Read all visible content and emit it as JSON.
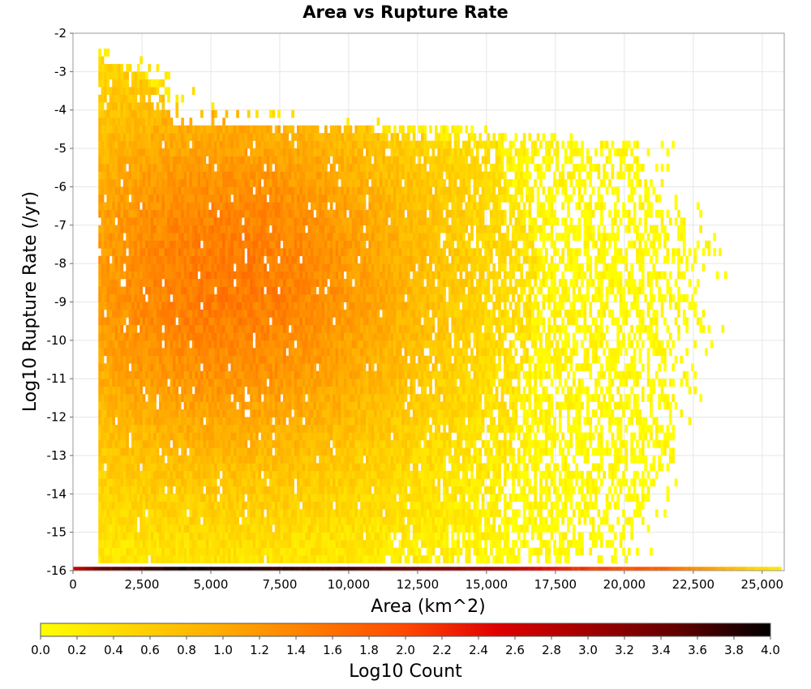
{
  "chart_data": {
    "type": "heatmap",
    "title": "Area vs Rupture Rate",
    "xlabel": "Area (km^2)",
    "ylabel": "Log10 Rupture Rate (/yr)",
    "xlim": [
      0,
      25800
    ],
    "ylim": [
      -16,
      -2
    ],
    "x_ticks": [
      "0",
      "2,500",
      "5,000",
      "7,500",
      "10,000",
      "12,500",
      "15,000",
      "17,500",
      "20,000",
      "22,500",
      "25,000"
    ],
    "x_tick_values": [
      0,
      2500,
      5000,
      7500,
      10000,
      12500,
      15000,
      17500,
      20000,
      22500,
      25000
    ],
    "y_ticks": [
      "-2",
      "-3",
      "-4",
      "-5",
      "-6",
      "-7",
      "-8",
      "-9",
      "-10",
      "-11",
      "-12",
      "-13",
      "-14",
      "-15",
      "-16"
    ],
    "y_tick_values": [
      -2,
      -3,
      -4,
      -5,
      -6,
      -7,
      -8,
      -9,
      -10,
      -11,
      -12,
      -13,
      -14,
      -15,
      -16
    ],
    "grid": true,
    "colorbar": {
      "label": "Log10 Count",
      "range": [
        0,
        4
      ],
      "ticks": [
        "0.0",
        "0.2",
        "0.4",
        "0.6",
        "0.8",
        "1.0",
        "1.2",
        "1.4",
        "1.6",
        "1.8",
        "2.0",
        "2.2",
        "2.4",
        "2.6",
        "2.8",
        "3.0",
        "3.2",
        "3.4",
        "3.6",
        "3.8",
        "4.0"
      ],
      "tick_values": [
        0,
        0.2,
        0.4,
        0.6,
        0.8,
        1.0,
        1.2,
        1.4,
        1.6,
        1.8,
        2.0,
        2.2,
        2.4,
        2.6,
        2.8,
        3.0,
        3.2,
        3.4,
        3.6,
        3.8,
        4.0
      ],
      "colors": [
        "#ffff00",
        "#ffd500",
        "#ffaa00",
        "#ff7a00",
        "#ff4800",
        "#e00000",
        "#a00000",
        "#600000",
        "#000000"
      ],
      "placement": "bottom"
    },
    "density_model": {
      "x_bin_width": 100,
      "y_bin_height": 0.2,
      "min_area": 920,
      "zero_rate_row": {
        "y": -16,
        "x_range": [
          0,
          25700
        ],
        "log10_count_profile": [
          [
            0,
            2.6
          ],
          [
            1000,
            3.4
          ],
          [
            4000,
            3.9
          ],
          [
            10000,
            3.6
          ],
          [
            15000,
            3.0
          ],
          [
            18000,
            2.2
          ],
          [
            21500,
            1.7
          ],
          [
            23500,
            0.9
          ],
          [
            25700,
            0.2
          ]
        ]
      },
      "max_area_by_rate": [
        [
          -2.7,
          1000
        ],
        [
          -3.0,
          2500
        ],
        [
          -4.0,
          5000
        ],
        [
          -5.0,
          20500
        ],
        [
          -6.0,
          20800
        ],
        [
          -7.0,
          22000
        ],
        [
          -8.0,
          22500
        ],
        [
          -9.0,
          22300
        ],
        [
          -11.0,
          21800
        ],
        [
          -13.0,
          21500
        ],
        [
          -15.0,
          20500
        ],
        [
          -15.8,
          19500
        ]
      ],
      "peak": {
        "x": 5500,
        "y": -8.5,
        "log10_count": 1.5
      }
    }
  }
}
